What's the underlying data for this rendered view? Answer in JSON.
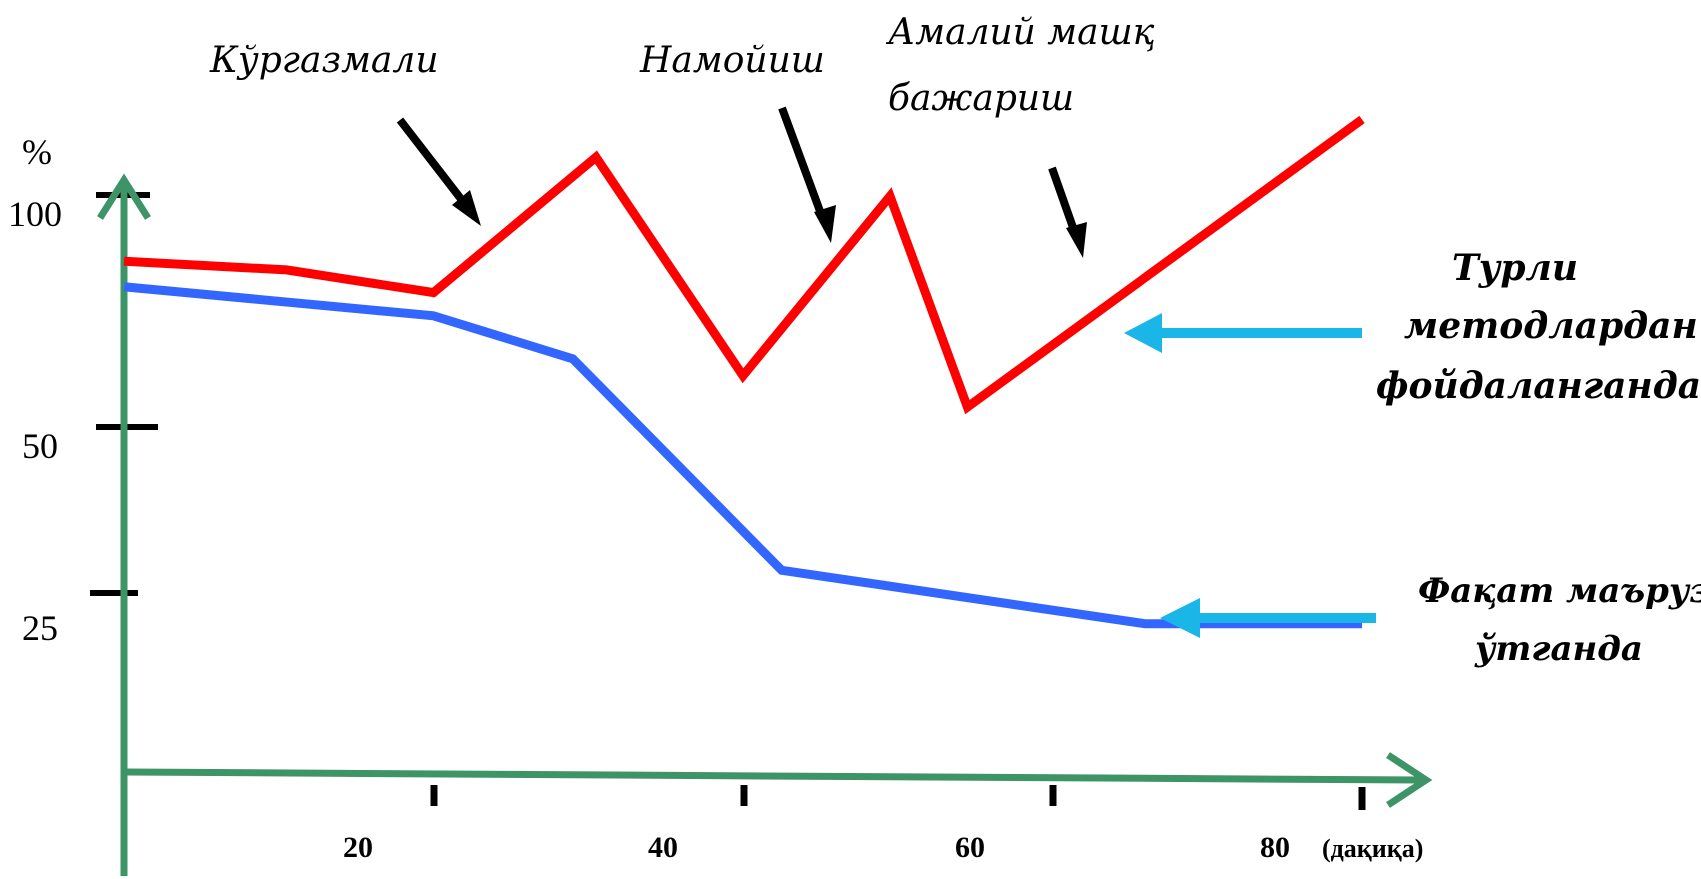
{
  "chart_data": {
    "type": "line",
    "ylabel": "%",
    "xunit": "(дақиқа)",
    "xlim": [
      0,
      82
    ],
    "ylim": [
      0,
      107
    ],
    "x_ticks": [
      20,
      40,
      60,
      80
    ],
    "y_ticks": [
      100,
      50,
      25
    ],
    "colors": {
      "axis": "#3c9467",
      "red": "#ff0000",
      "blue": "#3366ff",
      "callout": "#1ab6e8",
      "pointer": "#000000"
    },
    "series": [
      {
        "name": "Турли методлардан фойдаланганда",
        "color": "red",
        "points": [
          [
            0,
            88.6
          ],
          [
            10.5,
            87.1
          ],
          [
            20,
            83.2
          ],
          [
            30.5,
            106.5
          ],
          [
            40,
            68.9
          ],
          [
            49.5,
            99.8
          ],
          [
            54.5,
            63.5
          ],
          [
            80,
            113
          ]
        ]
      },
      {
        "name": "Фақат маъруза ўтганда",
        "color": "blue",
        "points": [
          [
            0,
            84.2
          ],
          [
            20,
            79.2
          ],
          [
            29,
            71.8
          ],
          [
            42.5,
            35.4
          ],
          [
            66,
            26.2
          ],
          [
            80,
            26.2
          ]
        ]
      }
    ],
    "annotations": [
      {
        "id": "kurgazmali",
        "lines": [
          "Кўргазмали"
        ]
      },
      {
        "id": "namoyish",
        "lines": [
          "Намойиш"
        ]
      },
      {
        "id": "amaliy",
        "lines": [
          "Амалий машқ",
          "бажариш"
        ]
      }
    ],
    "legend_labels": [
      {
        "series": "red",
        "lines": [
          "Турли",
          "методлардан",
          "фойдаланганда"
        ]
      },
      {
        "series": "blue",
        "lines": [
          "Фақат маъруза",
          "ўтганда"
        ]
      }
    ]
  }
}
